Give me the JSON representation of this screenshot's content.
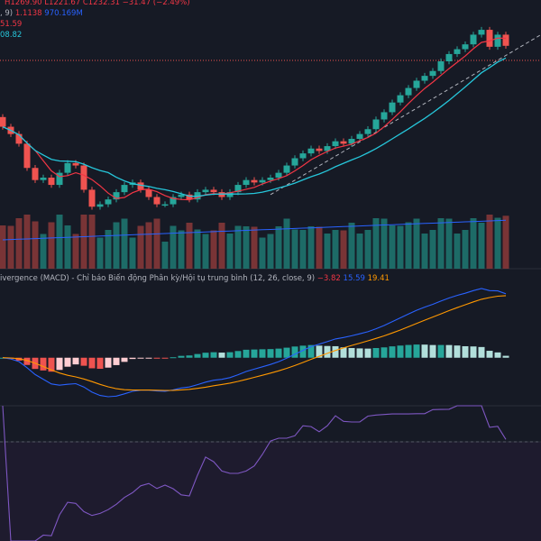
{
  "legend": {
    "ohlc_h": "H1269.90",
    "ohlc_l": "L1221.67",
    "ohlc_c": "C1232.31",
    "change": "−31.47 (−2.49%)",
    "vol_prefix": ", 9)",
    "vol_value_1": "1.1138",
    "vol_value_2": "970.169M",
    "ma_value_1": "51.59",
    "ma_value_2": "08.82"
  },
  "macd": {
    "title": "ivergence (MACD) - Chỉ báo Biến động Phân kỳ/Hội tụ trung bình (12, 26, close, 9)",
    "hist_value": "−3.82",
    "macd_value": "15.59",
    "signal_value": "19.41"
  },
  "colors": {
    "background": "#161a25",
    "up": "#26a69a",
    "down": "#ef5350",
    "ma_fast": "#f23645",
    "ma_slow": "#26c6da",
    "macd_line": "#2962ff",
    "signal_line": "#ff9800",
    "rsi_line": "#7e57c2",
    "trendline": "#b2b5be"
  },
  "chart_data": [
    {
      "type": "candlestick",
      "name": "price",
      "open": [
        1085,
        1065,
        1050,
        1030,
        980,
        955,
        960,
        945,
        970,
        990,
        985,
        935,
        900,
        905,
        915,
        930,
        945,
        950,
        935,
        920,
        905,
        905,
        920,
        925,
        915,
        930,
        935,
        930,
        920,
        930,
        945,
        955,
        950,
        955,
        960,
        970,
        985,
        1000,
        1010,
        1020,
        1015,
        1025,
        1035,
        1030,
        1040,
        1050,
        1060,
        1080,
        1095,
        1115,
        1130,
        1145,
        1160,
        1170,
        1180,
        1200,
        1215,
        1225,
        1235,
        1255,
        1265,
        1230,
        1255
      ],
      "close": [
        1065,
        1050,
        1030,
        980,
        955,
        960,
        945,
        970,
        990,
        985,
        935,
        900,
        905,
        915,
        930,
        945,
        950,
        935,
        920,
        905,
        905,
        920,
        925,
        915,
        930,
        935,
        930,
        920,
        930,
        945,
        955,
        950,
        955,
        960,
        970,
        985,
        1000,
        1010,
        1020,
        1015,
        1025,
        1035,
        1030,
        1040,
        1050,
        1060,
        1080,
        1095,
        1115,
        1130,
        1145,
        1160,
        1170,
        1180,
        1200,
        1215,
        1225,
        1235,
        1255,
        1265,
        1230,
        1255,
        1232
      ]
    },
    {
      "type": "line",
      "name": "MACD",
      "legend_values": {
        "histogram": -3.82,
        "macd": 15.59,
        "signal": 19.41
      }
    }
  ]
}
